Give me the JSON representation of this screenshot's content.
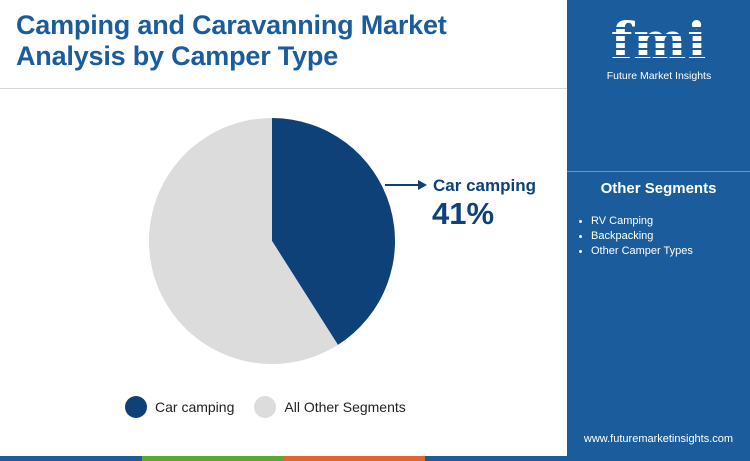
{
  "header": {
    "title": "Camping and Caravanning Market Analysis by Camper Type"
  },
  "chart_data": {
    "type": "pie",
    "categories": [
      "Car camping",
      "All Other Segments"
    ],
    "values": [
      41,
      59
    ],
    "colors": [
      "#0d4178",
      "#dcdcdc"
    ],
    "legend_position": "bottom",
    "annotation": {
      "label": "Car camping",
      "value": "41%"
    }
  },
  "legend": {
    "items": [
      {
        "label": "Car camping",
        "color": "#0d4178"
      },
      {
        "label": "All Other Segments",
        "color": "#dcdcdc"
      }
    ]
  },
  "side_panel": {
    "logo_text": "fmi",
    "logo_subtitle": "Future Market Insights",
    "heading": "Other Segments",
    "segments": [
      "RV Camping",
      "Backpacking",
      "Other Camper Types"
    ],
    "website": "www.futuremarketinsights.com"
  },
  "bottom_bar_colors": [
    "#1a5c9c",
    "#5aa832",
    "#e0662c",
    "#1a5c9c"
  ]
}
